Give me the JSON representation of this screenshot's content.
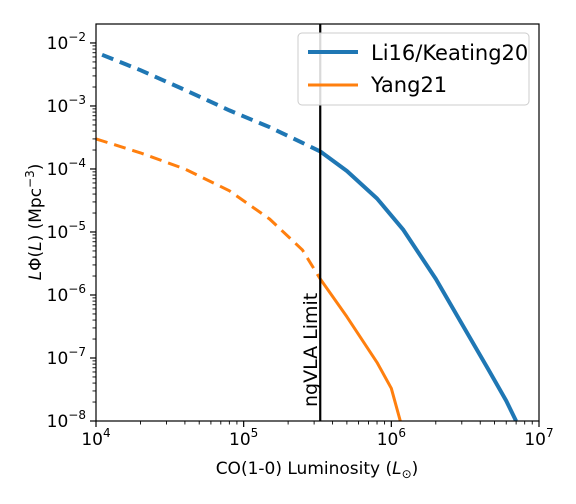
{
  "chart_data": {
    "type": "line",
    "xscale": "log",
    "yscale": "log",
    "xlim": [
      10000,
      10000000
    ],
    "ylim": [
      1e-08,
      0.02
    ],
    "x_ticks": [
      {
        "value": 10000,
        "base": "10",
        "exp": "4"
      },
      {
        "value": 100000,
        "base": "10",
        "exp": "5"
      },
      {
        "value": 1000000,
        "base": "10",
        "exp": "6"
      },
      {
        "value": 10000000,
        "base": "10",
        "exp": "7"
      }
    ],
    "y_ticks": [
      {
        "value": 1e-08,
        "base": "10",
        "exp": "−8"
      },
      {
        "value": 1e-07,
        "base": "10",
        "exp": "−7"
      },
      {
        "value": 1e-06,
        "base": "10",
        "exp": "−6"
      },
      {
        "value": 1e-05,
        "base": "10",
        "exp": "−5"
      },
      {
        "value": 0.0001,
        "base": "10",
        "exp": "−4"
      },
      {
        "value": 0.001,
        "base": "10",
        "exp": "−3"
      },
      {
        "value": 0.01,
        "base": "10",
        "exp": "−2"
      }
    ],
    "xlabel": {
      "main": "CO(1-0) Luminosity (",
      "italic": "L",
      "sub": "⊙",
      "close": ")"
    },
    "ylabel": {
      "prefix": "L",
      "phi": "Φ(",
      "italic": "L",
      "mid": ") (Mpc",
      "sup": "−3",
      "close": ")"
    },
    "limit": {
      "x": 330000,
      "label": "ngVLA Limit"
    },
    "legend_position": "top-right",
    "series": [
      {
        "name": "Li16/Keating20",
        "color": "#1f77b4",
        "points": [
          [
            11000,
            0.0065
          ],
          [
            20000,
            0.0037
          ],
          [
            40000,
            0.0018
          ],
          [
            80000,
            0.00085
          ],
          [
            150000,
            0.00046
          ],
          [
            250000,
            0.00026
          ],
          [
            330000,
            0.00019
          ],
          [
            500000,
            9.3e-05
          ],
          [
            800000,
            3.4e-05
          ],
          [
            1200000,
            1.1e-05
          ],
          [
            2000000,
            1.8e-06
          ],
          [
            3000000,
            3.5e-07
          ],
          [
            4500000,
            6.8e-08
          ],
          [
            6000000,
            2.1e-08
          ],
          [
            7000000,
            1e-08
          ]
        ]
      },
      {
        "name": "Yang21",
        "color": "#ff7f0e",
        "points": [
          [
            10000,
            0.0003
          ],
          [
            20000,
            0.00018
          ],
          [
            40000,
            0.0001
          ],
          [
            80000,
            4.5e-05
          ],
          [
            150000,
            1.6e-05
          ],
          [
            250000,
            5.2e-06
          ],
          [
            330000,
            1.8e-06
          ],
          [
            500000,
            4.5e-07
          ],
          [
            800000,
            8.5e-08
          ],
          [
            1000000,
            3.3e-08
          ],
          [
            1150000,
            1e-08
          ]
        ]
      }
    ]
  }
}
